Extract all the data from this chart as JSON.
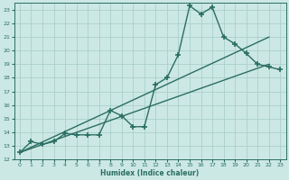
{
  "xlabel": "Humidex (Indice chaleur)",
  "xlim": [
    -0.5,
    23.5
  ],
  "ylim": [
    12,
    23.5
  ],
  "xticks": [
    0,
    1,
    2,
    3,
    4,
    5,
    6,
    7,
    8,
    9,
    10,
    11,
    12,
    13,
    14,
    15,
    16,
    17,
    18,
    19,
    20,
    21,
    22,
    23
  ],
  "yticks": [
    12,
    13,
    14,
    15,
    16,
    17,
    18,
    19,
    20,
    21,
    22,
    23
  ],
  "line_color": "#2a6e62",
  "bg_color": "#cce8e4",
  "grid_color": "#aacfca",
  "line1_x": [
    0,
    1,
    2,
    3,
    4,
    5,
    6,
    7,
    8,
    9,
    10,
    11,
    12,
    13,
    14,
    15,
    16,
    17,
    18,
    19,
    20,
    21,
    22,
    23
  ],
  "line1_y": [
    12.5,
    13.3,
    13.1,
    13.3,
    13.9,
    13.8,
    13.8,
    13.8,
    15.6,
    15.2,
    14.4,
    14.4,
    17.5,
    18.0,
    19.7,
    23.3,
    22.7,
    23.2,
    21.0,
    20.5,
    19.8,
    19.0,
    18.8,
    18.6
  ],
  "line2_x": [
    0,
    22
  ],
  "line2_y": [
    12.5,
    19.0
  ],
  "line3_x": [
    0,
    22
  ],
  "line3_y": [
    12.5,
    21.0
  ],
  "marker": "+",
  "markersize": 5,
  "linewidth": 1.0
}
